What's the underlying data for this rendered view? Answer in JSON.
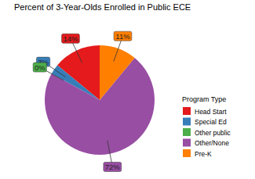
{
  "chart_data": {
    "type": "pie",
    "title": "Percent of 3-Year-Olds Enrolled in Public ECE",
    "legend_title": "Program Type",
    "categories": [
      "Head Start",
      "Special Ed",
      "Other public",
      "Other/None",
      "Pre-K"
    ],
    "values": [
      14,
      3,
      0,
      72,
      11
    ],
    "value_labels": [
      "14%",
      "3%",
      "0%",
      "72%",
      "11%"
    ],
    "colors": [
      "#e41a1c",
      "#377eb8",
      "#4daf4a",
      "#984ea3",
      "#ff7f00"
    ],
    "data_labels": true,
    "legend": "right"
  }
}
